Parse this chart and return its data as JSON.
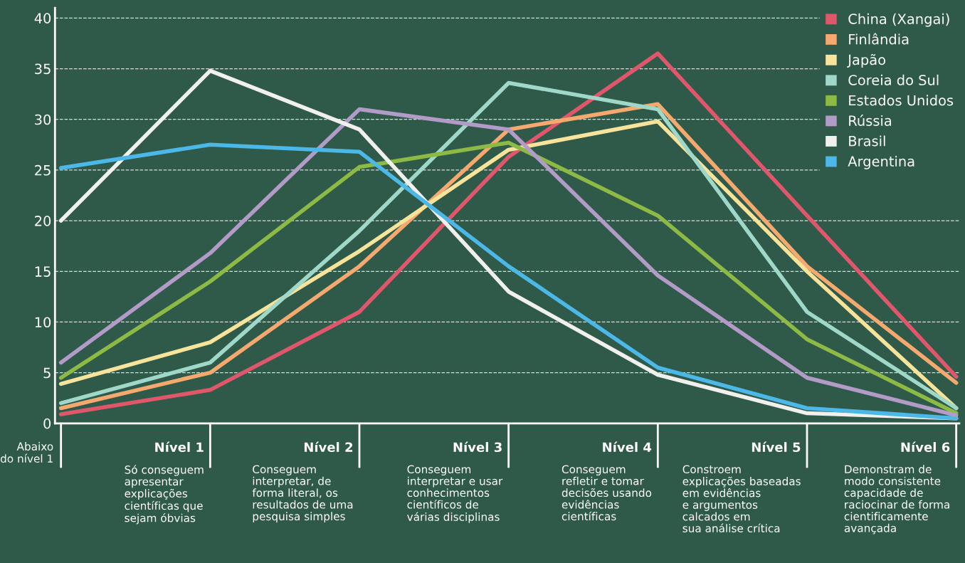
{
  "chart_data": {
    "type": "line",
    "categories": [
      "Abaixo do nível 1",
      "Nível 1",
      "Nível 2",
      "Nível 3",
      "Nível 4",
      "Nível 5",
      "Nível 6"
    ],
    "series": [
      {
        "name": "China (Xangai)",
        "color": "#e0566a",
        "values": [
          0.9,
          3.3,
          11,
          26.3,
          36.5,
          20.5,
          4.6
        ]
      },
      {
        "name": "Finlândia",
        "color": "#f5a96e",
        "values": [
          1.5,
          5,
          15.5,
          29,
          31.5,
          15.5,
          4
        ]
      },
      {
        "name": "Japão",
        "color": "#f7e49a",
        "values": [
          3.9,
          8,
          17,
          27,
          29.8,
          15,
          1.5
        ]
      },
      {
        "name": "Coreia do Sul",
        "color": "#9fd8c8",
        "values": [
          2,
          6,
          19,
          33.6,
          31,
          11,
          1.5
        ]
      },
      {
        "name": "Estados Unidos",
        "color": "#8cba45",
        "values": [
          4.5,
          14,
          25.3,
          27.7,
          20.5,
          8.3,
          1
        ]
      },
      {
        "name": "Rússia",
        "color": "#b39bc8",
        "values": [
          6,
          16.8,
          31,
          29,
          14.6,
          4.5,
          0.8
        ]
      },
      {
        "name": "Brasil",
        "color": "#f0f0ec",
        "values": [
          20,
          34.8,
          29,
          13,
          4.8,
          1,
          0.5
        ]
      },
      {
        "name": "Argentina",
        "color": "#4bb8e8",
        "values": [
          25.2,
          27.5,
          26.8,
          15.5,
          5.5,
          1.5,
          0.5
        ]
      }
    ],
    "ylim": [
      0,
      41
    ],
    "yticks": [
      0,
      5,
      10,
      15,
      20,
      25,
      30,
      35,
      40
    ],
    "grid": "y",
    "legend": "top right",
    "marker": "none",
    "line_style": "solid",
    "annotations": [
      "Só conseguem\napresentar\nexplicações\ncientíficas que\nsejam óbvias",
      "Conseguem\ninterpretar, de\nforma literal, os\nresultados de uma\npesquisa simples",
      "Conseguem\ninterpretar e usar\nconhecimentos\ncientíficos de\nvárias disciplinas",
      "Conseguem\nrefletir e tomar\ndecisões usando\nevidências\ncientíficas",
      "Constroem\nexplicações baseadas\nem evidências\ne argumentos\ncalcados em\nsua análise crítica",
      "Demonstram de\nmodo consistente\ncapacidade de\nraciocinar de forma\ncientificamente\navançada"
    ]
  }
}
